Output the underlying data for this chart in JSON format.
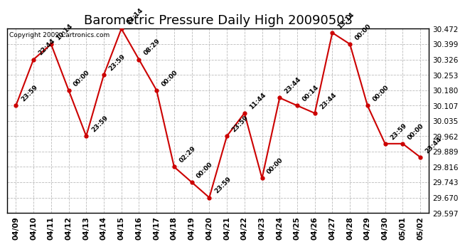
{
  "title": "Barometric Pressure Daily High 20090503",
  "copyright": "Copyright 2009 Cartronics.com",
  "x_labels": [
    "04/09",
    "04/10",
    "04/11",
    "04/12",
    "04/13",
    "04/14",
    "04/15",
    "04/16",
    "04/17",
    "04/18",
    "04/19",
    "04/20",
    "04/21",
    "04/22",
    "04/23",
    "04/24",
    "04/25",
    "04/26",
    "04/27",
    "04/28",
    "04/29",
    "04/30",
    "05/01",
    "05/02"
  ],
  "y_values": [
    30.107,
    30.326,
    30.399,
    30.18,
    29.962,
    30.253,
    30.472,
    30.326,
    30.18,
    29.816,
    29.743,
    29.67,
    29.962,
    30.071,
    29.762,
    30.144,
    30.107,
    30.071,
    30.453,
    30.399,
    30.107,
    29.926,
    29.926,
    29.862
  ],
  "point_labels": [
    "23:59",
    "22:44",
    "10:14",
    "00:00",
    "23:59",
    "23:59",
    "13:14",
    "08:29",
    "00:00",
    "02:29",
    "00:00",
    "23:59",
    "23:59",
    "11:44",
    "00:00",
    "23:44",
    "00:14",
    "23:44",
    "13:14",
    "00:00",
    "00:00",
    "23:59",
    "00:00",
    "23:44"
  ],
  "ylim_min": 29.597,
  "ylim_max": 30.472,
  "yticks": [
    29.597,
    29.67,
    29.743,
    29.816,
    29.889,
    29.962,
    30.035,
    30.107,
    30.18,
    30.253,
    30.326,
    30.399,
    30.472
  ],
  "line_color": "#cc0000",
  "marker_color": "#cc0000",
  "grid_color": "#bbbbbb",
  "background_color": "#ffffff",
  "title_fontsize": 13,
  "annotation_fontsize": 6.5,
  "tick_fontsize": 7.5,
  "copyright_fontsize": 6.5
}
